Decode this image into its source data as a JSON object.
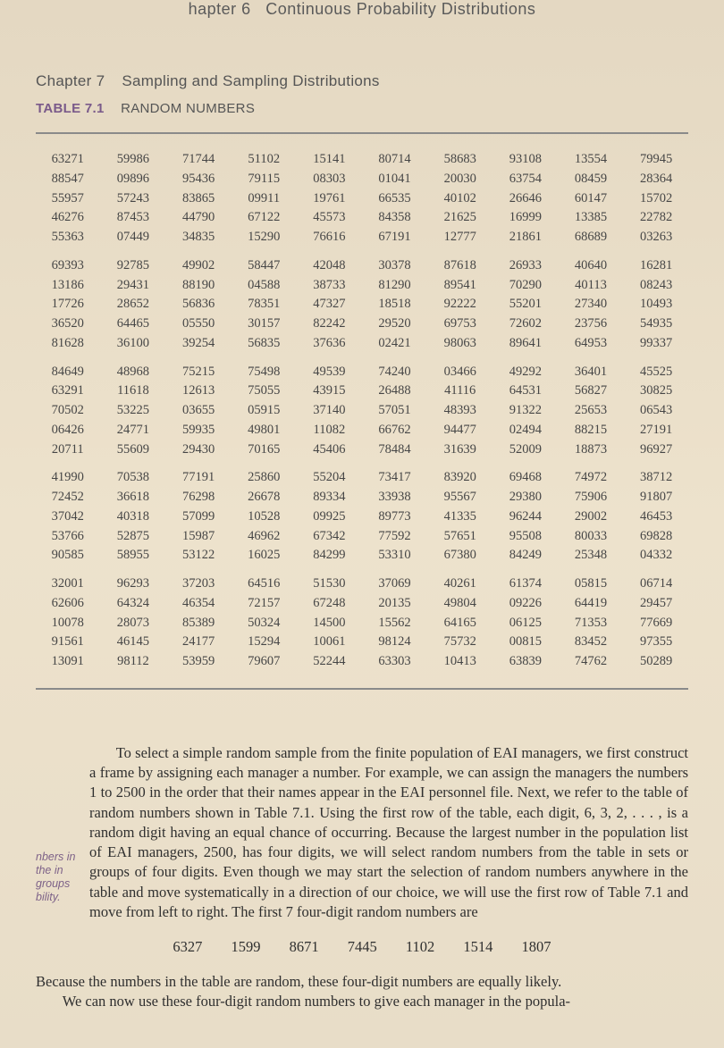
{
  "header_top_prefix": "hapter 6",
  "header_top": "Continuous Probability Distributions",
  "chapter_label": "Chapter 7",
  "chapter_title": "Sampling and Sampling Distributions",
  "table_label": "TABLE 7.1",
  "table_title": "RANDOM NUMBERS",
  "blocks": [
    [
      [
        "63271",
        "59986",
        "71744",
        "51102",
        "15141",
        "80714",
        "58683",
        "93108",
        "13554",
        "79945"
      ],
      [
        "88547",
        "09896",
        "95436",
        "79115",
        "08303",
        "01041",
        "20030",
        "63754",
        "08459",
        "28364"
      ],
      [
        "55957",
        "57243",
        "83865",
        "09911",
        "19761",
        "66535",
        "40102",
        "26646",
        "60147",
        "15702"
      ],
      [
        "46276",
        "87453",
        "44790",
        "67122",
        "45573",
        "84358",
        "21625",
        "16999",
        "13385",
        "22782"
      ],
      [
        "55363",
        "07449",
        "34835",
        "15290",
        "76616",
        "67191",
        "12777",
        "21861",
        "68689",
        "03263"
      ]
    ],
    [
      [
        "69393",
        "92785",
        "49902",
        "58447",
        "42048",
        "30378",
        "87618",
        "26933",
        "40640",
        "16281"
      ],
      [
        "13186",
        "29431",
        "88190",
        "04588",
        "38733",
        "81290",
        "89541",
        "70290",
        "40113",
        "08243"
      ],
      [
        "17726",
        "28652",
        "56836",
        "78351",
        "47327",
        "18518",
        "92222",
        "55201",
        "27340",
        "10493"
      ],
      [
        "36520",
        "64465",
        "05550",
        "30157",
        "82242",
        "29520",
        "69753",
        "72602",
        "23756",
        "54935"
      ],
      [
        "81628",
        "36100",
        "39254",
        "56835",
        "37636",
        "02421",
        "98063",
        "89641",
        "64953",
        "99337"
      ]
    ],
    [
      [
        "84649",
        "48968",
        "75215",
        "75498",
        "49539",
        "74240",
        "03466",
        "49292",
        "36401",
        "45525"
      ],
      [
        "63291",
        "11618",
        "12613",
        "75055",
        "43915",
        "26488",
        "41116",
        "64531",
        "56827",
        "30825"
      ],
      [
        "70502",
        "53225",
        "03655",
        "05915",
        "37140",
        "57051",
        "48393",
        "91322",
        "25653",
        "06543"
      ],
      [
        "06426",
        "24771",
        "59935",
        "49801",
        "11082",
        "66762",
        "94477",
        "02494",
        "88215",
        "27191"
      ],
      [
        "20711",
        "55609",
        "29430",
        "70165",
        "45406",
        "78484",
        "31639",
        "52009",
        "18873",
        "96927"
      ]
    ],
    [
      [
        "41990",
        "70538",
        "77191",
        "25860",
        "55204",
        "73417",
        "83920",
        "69468",
        "74972",
        "38712"
      ],
      [
        "72452",
        "36618",
        "76298",
        "26678",
        "89334",
        "33938",
        "95567",
        "29380",
        "75906",
        "91807"
      ],
      [
        "37042",
        "40318",
        "57099",
        "10528",
        "09925",
        "89773",
        "41335",
        "96244",
        "29002",
        "46453"
      ],
      [
        "53766",
        "52875",
        "15987",
        "46962",
        "67342",
        "77592",
        "57651",
        "95508",
        "80033",
        "69828"
      ],
      [
        "90585",
        "58955",
        "53122",
        "16025",
        "84299",
        "53310",
        "67380",
        "84249",
        "25348",
        "04332"
      ]
    ],
    [
      [
        "32001",
        "96293",
        "37203",
        "64516",
        "51530",
        "37069",
        "40261",
        "61374",
        "05815",
        "06714"
      ],
      [
        "62606",
        "64324",
        "46354",
        "72157",
        "67248",
        "20135",
        "49804",
        "09226",
        "64419",
        "29457"
      ],
      [
        "10078",
        "28073",
        "85389",
        "50324",
        "14500",
        "15562",
        "64165",
        "06125",
        "71353",
        "77669"
      ],
      [
        "91561",
        "46145",
        "24177",
        "15294",
        "10061",
        "98124",
        "75732",
        "00815",
        "83452",
        "97355"
      ],
      [
        "13091",
        "98112",
        "53959",
        "79607",
        "52244",
        "63303",
        "10413",
        "63839",
        "74762",
        "50289"
      ]
    ]
  ],
  "body_paragraph": "To select a simple random sample from the finite population of EAI managers, we first construct a frame by assigning each manager a number. For example, we can assign the managers the numbers 1 to 2500 in the order that their names appear in the EAI personnel file. Next, we refer to the table of random numbers shown in Table 7.1. Using the first row of the table, each digit, 6, 3, 2, . . . , is a random digit having an equal chance of occurring. Because the largest number in the population list of EAI managers, 2500, has four digits, we will select random numbers from the table in sets or groups of four digits. Even though we may start the selection of random numbers anywhere in the table and move systematically in a direction of our choice, we will use the first row of Table 7.1 and move from left to right. The first 7 four-digit random numbers are",
  "margin_note": "nbers in the in groups bility.",
  "sequence": [
    "6327",
    "1599",
    "8671",
    "7445",
    "1102",
    "1514",
    "1807"
  ],
  "trail1": "Because the numbers in the table are random, these four-digit numbers are equally likely.",
  "trail2": "We can now use these four-digit random numbers to give each manager in the popula-",
  "colors": {
    "bg": "#e8ddc8",
    "text": "#3a3a3a",
    "accent": "#7a5a8a",
    "rule": "#8a8a8a"
  },
  "fontsizes": {
    "header": 18,
    "chapter": 17,
    "table_title": 15,
    "table_body": 14.5,
    "body": 16.5,
    "margin_note": 12.5
  }
}
